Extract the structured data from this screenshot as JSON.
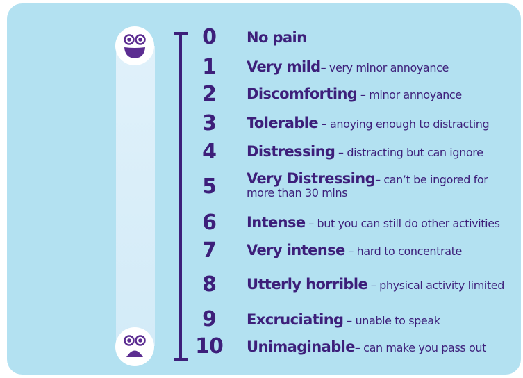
{
  "colors": {
    "background": "#b3e1f1",
    "gradient_bar": "#dcefF9",
    "text": "#3d1f7a",
    "face_fill": "#ffffff",
    "face_features": "#5c2d91"
  },
  "icons": {
    "top": "happy-face-icon",
    "bottom": "sad-face-icon"
  },
  "scale": [
    {
      "level": "0",
      "title": "No pain",
      "description": ""
    },
    {
      "level": "1",
      "title": "Very mild",
      "description": "– very minor annoyance"
    },
    {
      "level": "2",
      "title": "Discomforting",
      "description": " – minor annoyance"
    },
    {
      "level": "3",
      "title": "Tolerable",
      "description": " – anoying enough to distracting"
    },
    {
      "level": "4",
      "title": "Distressing",
      "description": " – distracting but can ignore"
    },
    {
      "level": "5",
      "title": "Very Distressing",
      "description": "– can’t be ingored for more than 30 mins"
    },
    {
      "level": "6",
      "title": "Intense",
      "description": " – but you can still do other activities"
    },
    {
      "level": "7",
      "title": "Very intense",
      "description": " – hard to concentrate"
    },
    {
      "level": "8",
      "title": "Utterly horrible",
      "description": " – physical activity limited"
    },
    {
      "level": "9",
      "title": "Excruciating",
      "description": " – unable to speak"
    },
    {
      "level": "10",
      "title": "Unimaginable",
      "description": "– can make you pass out"
    }
  ]
}
